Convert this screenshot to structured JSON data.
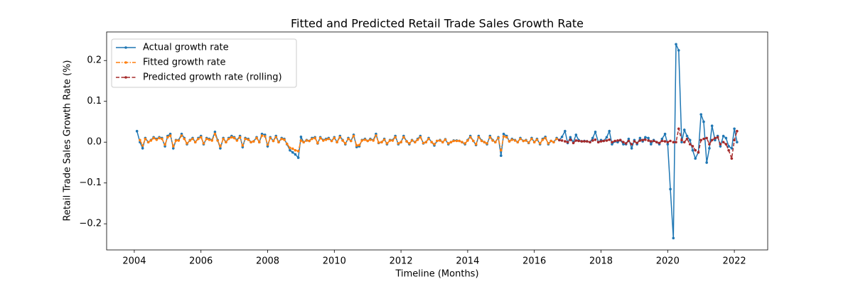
{
  "chart_data": {
    "type": "line",
    "title": "Fitted and Predicted Retail Trade Sales Growth Rate",
    "xlabel": "Timeline (Months)",
    "ylabel": "Retail Trade Sales Growth Rate (%)",
    "xlim": [
      2003.17,
      2023.0
    ],
    "ylim": [
      -0.264,
      0.27
    ],
    "xticks": [
      2004,
      2006,
      2008,
      2010,
      2012,
      2014,
      2016,
      2018,
      2020,
      2022
    ],
    "yticks": [
      {
        "value": -0.2,
        "label": "−0.2"
      },
      {
        "value": -0.1,
        "label": "−0.1"
      },
      {
        "value": 0,
        "label": "0.0"
      },
      0.1,
      0.2
    ],
    "legend": "upper left",
    "x": [
      2004.08,
      2004.17,
      2004.25,
      2004.33,
      2004.42,
      2004.5,
      2004.58,
      2004.67,
      2004.75,
      2004.83,
      2004.92,
      2005,
      2005.08,
      2005.17,
      2005.25,
      2005.33,
      2005.42,
      2005.5,
      2005.58,
      2005.67,
      2005.75,
      2005.83,
      2005.92,
      2006,
      2006.08,
      2006.17,
      2006.25,
      2006.33,
      2006.42,
      2006.5,
      2006.58,
      2006.67,
      2006.75,
      2006.83,
      2006.92,
      2007,
      2007.08,
      2007.17,
      2007.25,
      2007.33,
      2007.42,
      2007.5,
      2007.58,
      2007.67,
      2007.75,
      2007.83,
      2007.92,
      2008,
      2008.08,
      2008.17,
      2008.25,
      2008.33,
      2008.42,
      2008.5,
      2008.58,
      2008.67,
      2008.75,
      2008.83,
      2008.92,
      2009,
      2009.08,
      2009.17,
      2009.25,
      2009.33,
      2009.42,
      2009.5,
      2009.58,
      2009.67,
      2009.75,
      2009.83,
      2009.92,
      2010,
      2010.08,
      2010.17,
      2010.25,
      2010.33,
      2010.42,
      2010.5,
      2010.58,
      2010.67,
      2010.75,
      2010.83,
      2010.92,
      2011,
      2011.08,
      2011.17,
      2011.25,
      2011.33,
      2011.42,
      2011.5,
      2011.58,
      2011.67,
      2011.75,
      2011.83,
      2011.92,
      2012,
      2012.08,
      2012.17,
      2012.25,
      2012.33,
      2012.42,
      2012.5,
      2012.58,
      2012.67,
      2012.75,
      2012.83,
      2012.92,
      2013,
      2013.08,
      2013.17,
      2013.25,
      2013.33,
      2013.42,
      2013.5,
      2013.58,
      2013.67,
      2013.75,
      2013.83,
      2013.92,
      2014,
      2014.08,
      2014.17,
      2014.25,
      2014.33,
      2014.42,
      2014.5,
      2014.58,
      2014.67,
      2014.75,
      2014.83,
      2014.92,
      2015,
      2015.08,
      2015.17,
      2015.25,
      2015.33,
      2015.42,
      2015.5,
      2015.58,
      2015.67,
      2015.75,
      2015.83,
      2015.92,
      2016,
      2016.08,
      2016.17,
      2016.25,
      2016.33,
      2016.42,
      2016.5,
      2016.58,
      2016.67,
      2016.75,
      2016.83,
      2016.92,
      2017,
      2017.08,
      2017.17,
      2017.25,
      2017.33,
      2017.42,
      2017.5,
      2017.58,
      2017.67,
      2017.75,
      2017.83,
      2017.92,
      2018,
      2018.08,
      2018.17,
      2018.25,
      2018.33,
      2018.42,
      2018.5,
      2018.58,
      2018.67,
      2018.75,
      2018.83,
      2018.92,
      2019,
      2019.08,
      2019.17,
      2019.25,
      2019.33,
      2019.42,
      2019.5,
      2019.58,
      2019.67,
      2019.75,
      2019.83,
      2019.92,
      2020,
      2020.08,
      2020.17,
      2020.25,
      2020.33,
      2020.42,
      2020.5,
      2020.58,
      2020.67,
      2020.75,
      2020.83,
      2020.92,
      2021,
      2021.08,
      2021.17,
      2021.25,
      2021.33,
      2021.42,
      2021.5,
      2021.58,
      2021.67,
      2021.75,
      2021.83,
      2021.92,
      2022,
      2022.08
    ],
    "series": [
      {
        "name": "Actual growth rate",
        "color": "#1f77b4",
        "linestyle": "solid",
        "values": [
          0.027,
          0.0,
          -0.015,
          0.01,
          0.0,
          0.005,
          0.012,
          0.008,
          0.012,
          0.01,
          -0.01,
          0.015,
          0.02,
          -0.015,
          0.005,
          0.005,
          0.02,
          0.01,
          -0.005,
          0.005,
          0.01,
          0.0,
          0.01,
          0.015,
          -0.005,
          0.01,
          0.008,
          0.005,
          0.025,
          0.005,
          -0.015,
          0.01,
          0.0,
          0.01,
          0.015,
          0.012,
          0.005,
          0.015,
          -0.012,
          0.01,
          0.008,
          0.0,
          0.002,
          0.012,
          0.0,
          0.02,
          0.018,
          -0.01,
          0.012,
          0.003,
          0.015,
          0.0,
          0.01,
          0.008,
          -0.005,
          -0.02,
          -0.025,
          -0.03,
          -0.038,
          0.013,
          0.0,
          0.005,
          0.003,
          0.01,
          0.012,
          -0.003,
          0.012,
          0.005,
          0.008,
          0.01,
          0.003,
          0.012,
          0.0,
          0.015,
          0.005,
          -0.005,
          0.01,
          0.003,
          0.018,
          -0.012,
          -0.01,
          0.005,
          0.008,
          0.003,
          0.008,
          0.005,
          0.02,
          -0.002,
          0.0,
          0.008,
          -0.005,
          0.005,
          0.005,
          0.015,
          -0.005,
          0.0,
          0.015,
          0.002,
          -0.005,
          0.005,
          0.0,
          0.008,
          0.015,
          -0.003,
          0.0,
          0.01,
          0.0,
          -0.008,
          0.003,
          0.005,
          0.0,
          0.007,
          -0.005,
          0.0,
          0.004,
          0.004,
          0.003,
          0.0,
          -0.005,
          0.005,
          0.015,
          0.003,
          -0.007,
          0.015,
          0.004,
          0.0,
          -0.005,
          0.015,
          0.005,
          0.0,
          0.012,
          -0.033,
          0.02,
          0.015,
          0.002,
          0.008,
          0.005,
          0.0,
          0.01,
          0.003,
          0.005,
          -0.002,
          0.01,
          0.0,
          0.008,
          -0.005,
          0.008,
          0.013,
          -0.005,
          0.003,
          0.0,
          0.01,
          0.005,
          0.013,
          0.027,
          -0.002,
          0.012,
          0.0,
          0.018,
          0.005,
          0.002,
          0.003,
          0.002,
          0.0,
          0.01,
          0.025,
          0.0,
          0.005,
          0.003,
          0.012,
          0.027,
          -0.005,
          0.002,
          0.0,
          0.005,
          -0.005,
          -0.005,
          0.008,
          -0.015,
          0.005,
          -0.005,
          0.01,
          0.002,
          0.012,
          0.01,
          -0.005,
          0.005,
          0.0,
          -0.005,
          0.008,
          0.02,
          -0.005,
          -0.115,
          -0.235,
          0.24,
          0.225,
          0.0,
          0.03,
          0.015,
          0.005,
          -0.02,
          -0.04,
          -0.025,
          0.068,
          0.05,
          -0.05,
          -0.015,
          0.04,
          0.005,
          0.015,
          -0.01,
          0.015,
          0.01,
          -0.01,
          -0.015,
          0.033,
          0.0
        ]
      },
      {
        "name": "Fitted growth rate",
        "color": "#ff7f0e",
        "linestyle": "dashdot",
        "values": [
          null,
          0.005,
          -0.008,
          0.008,
          0.0,
          0.004,
          0.01,
          0.006,
          0.01,
          0.008,
          -0.006,
          0.012,
          0.016,
          -0.01,
          0.004,
          0.004,
          0.016,
          0.008,
          -0.003,
          0.004,
          0.008,
          0.0,
          0.008,
          0.012,
          -0.003,
          0.008,
          0.006,
          0.004,
          0.02,
          0.004,
          -0.01,
          0.008,
          0.0,
          0.008,
          0.012,
          0.01,
          0.004,
          0.012,
          -0.008,
          0.008,
          0.006,
          0.0,
          0.002,
          0.01,
          0.0,
          0.016,
          0.014,
          -0.006,
          0.01,
          0.003,
          0.012,
          0.0,
          0.008,
          0.006,
          -0.004,
          -0.014,
          -0.016,
          -0.02,
          -0.022,
          0.004,
          0.0,
          0.004,
          0.003,
          0.008,
          0.01,
          -0.002,
          0.01,
          0.004,
          0.006,
          0.008,
          0.003,
          0.01,
          0.0,
          0.012,
          0.004,
          -0.003,
          0.008,
          0.003,
          0.015,
          -0.008,
          -0.007,
          0.004,
          0.006,
          0.003,
          0.006,
          0.004,
          0.016,
          -0.001,
          0.0,
          0.006,
          -0.003,
          0.004,
          0.004,
          0.012,
          -0.003,
          0.0,
          0.012,
          0.002,
          -0.003,
          0.004,
          0.0,
          0.006,
          0.012,
          -0.002,
          0.0,
          0.008,
          0.0,
          -0.005,
          0.003,
          0.004,
          0.0,
          0.006,
          -0.003,
          0.0,
          0.003,
          0.003,
          0.003,
          0.0,
          -0.003,
          0.004,
          0.012,
          0.003,
          -0.005,
          0.012,
          0.003,
          0.0,
          -0.003,
          0.012,
          0.004,
          0.0,
          0.01,
          -0.02,
          0.014,
          0.012,
          0.002,
          0.006,
          0.004,
          0.0,
          0.008,
          0.003,
          0.004,
          -0.001,
          0.008,
          0.0,
          0.006,
          -0.003,
          0.006,
          0.01,
          -0.003,
          0.003,
          0.0,
          0.008,
          null,
          null,
          null,
          null,
          null,
          null,
          null,
          null,
          null,
          null,
          null,
          null,
          null,
          null,
          null,
          null,
          null,
          null,
          null,
          null,
          null,
          null,
          null,
          null,
          null,
          null,
          null,
          null,
          null,
          null,
          null,
          null,
          null,
          null,
          null,
          null,
          null,
          null,
          null,
          null,
          null,
          null,
          null,
          null,
          null,
          null,
          null,
          null,
          null,
          null,
          null,
          null,
          null,
          null,
          null,
          null,
          null,
          null,
          null,
          null,
          null,
          null,
          null,
          null,
          null
        ]
      },
      {
        "name": "Predicted growth rate (rolling)",
        "color": "#a52a2a",
        "linestyle": "dashed",
        "values": [
          null,
          null,
          null,
          null,
          null,
          null,
          null,
          null,
          null,
          null,
          null,
          null,
          null,
          null,
          null,
          null,
          null,
          null,
          null,
          null,
          null,
          null,
          null,
          null,
          null,
          null,
          null,
          null,
          null,
          null,
          null,
          null,
          null,
          null,
          null,
          null,
          null,
          null,
          null,
          null,
          null,
          null,
          null,
          null,
          null,
          null,
          null,
          null,
          null,
          null,
          null,
          null,
          null,
          null,
          null,
          null,
          null,
          null,
          null,
          null,
          null,
          null,
          null,
          null,
          null,
          null,
          null,
          null,
          null,
          null,
          null,
          null,
          null,
          null,
          null,
          null,
          null,
          null,
          null,
          null,
          null,
          null,
          null,
          null,
          null,
          null,
          null,
          null,
          null,
          null,
          null,
          null,
          null,
          null,
          null,
          null,
          null,
          null,
          null,
          null,
          null,
          null,
          null,
          null,
          null,
          null,
          null,
          null,
          null,
          null,
          null,
          null,
          null,
          null,
          null,
          null,
          null,
          null,
          null,
          null,
          null,
          null,
          null,
          null,
          null,
          null,
          null,
          null,
          null,
          null,
          null,
          null,
          null,
          null,
          null,
          null,
          null,
          null,
          null,
          null,
          null,
          null,
          null,
          null,
          null,
          null,
          null,
          null,
          null,
          null,
          null,
          null,
          0.005,
          0.004,
          0.002,
          0.0,
          0.006,
          -0.002,
          0.004,
          0.003,
          0.002,
          0.002,
          0.002,
          0.0,
          0.004,
          0.006,
          0.0,
          0.002,
          0.003,
          0.004,
          0.006,
          0.0,
          0.003,
          0.004,
          0.005,
          0.0,
          -0.003,
          0.003,
          -0.005,
          0.002,
          -0.002,
          0.004,
          0.005,
          0.006,
          0.004,
          0.002,
          0.003,
          0.0,
          -0.002,
          0.003,
          0.002,
          0.0,
          0.003,
          0.0,
          0.0,
          0.033,
          0.005,
          0.0,
          0.008,
          -0.005,
          -0.01,
          -0.02,
          -0.025,
          0.005,
          0.008,
          0.01,
          -0.005,
          0.005,
          0.01,
          0.012,
          -0.005,
          0.0,
          -0.005,
          -0.02,
          -0.04,
          0.005,
          0.027
        ]
      }
    ]
  }
}
